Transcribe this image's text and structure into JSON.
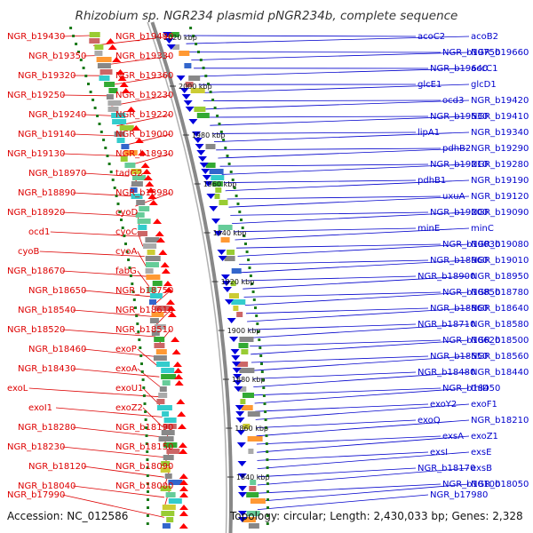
{
  "title": "Rhizobium sp. NGR234 plasmid pNGR234b, complete sequence",
  "footer": {
    "accession": "Accession: NC_012586",
    "summary": "Topology: circular; Length: 2,430,033 bp; Genes: 2,328"
  },
  "colors": {
    "left_labels": "#dd0000",
    "right_labels": "#0000cc",
    "backbone": "#888888",
    "ticks": "#1a7a1a"
  },
  "kbp_marks": [
    "2020 kbp",
    "2000 kbp",
    "1980 kbp",
    "1960 kbp",
    "1940 kbp",
    "1920 kbp",
    "1900 kbp",
    "1880 kbp",
    "1860 kbp",
    "1840 kbp"
  ],
  "left_labels": [
    "NGR_b19430",
    "NGR_b19490",
    "NGR_b19350",
    "NGR_b19330",
    "NGR_b19320",
    "NGR_b19360",
    "NGR_b19250",
    "NGR_b19230",
    "NGR_b19240",
    "NGR_b19220",
    "NGR_b19140",
    "NGR_b19000",
    "NGR_b19130",
    "NGR_b18930",
    "NGR_b18970",
    "tadG2",
    "NGR_b18890",
    "NGR_b18980",
    "NGR_b18920",
    "cyoD",
    "ocd1",
    "cyoC",
    "cyoB",
    "cyoA",
    "NGR_b18670",
    "fabG",
    "NGR_b18650",
    "NGR_b18750",
    "NGR_b18540",
    "NGR_b18610",
    "NGR_b18520",
    "NGR_b18510",
    "NGR_b18460",
    "exoP",
    "NGR_b18430",
    "exoA",
    "exoL",
    "exoU1",
    "exoI1",
    "exoZ2",
    "NGR_b18280",
    "NGR_b18190",
    "NGR_b18230",
    "NGR_b18150",
    "NGR_b18120",
    "NGR_b18090",
    "NGR_b18040",
    "NGR_b18000",
    "NGR_b17990"
  ],
  "right_labels": [
    "acoC2",
    "acoB2",
    "NGR_b19750",
    "NGR_b19660",
    "NGR_b19640",
    "accC1",
    "glcE1",
    "glcD1",
    "ocd3",
    "NGR_b19420",
    "NGR_b19530",
    "NGR_b19410",
    "lipA1",
    "NGR_b19340",
    "pdhB2",
    "NGR_b19290",
    "NGR_b19210",
    "NGR_b19280",
    "pdhB1",
    "NGR_b19190",
    "uxuA",
    "NGR_b19120",
    "NGR_b19200",
    "NGR_b19090",
    "minE",
    "minC",
    "NGR_b19030",
    "NGR_b19080",
    "NGR_b18960",
    "NGR_b19010",
    "NGR_b18900",
    "NGR_b18950",
    "NGR_b18850",
    "NGR_b18780",
    "NGR_b18860",
    "NGR_b18640",
    "NGR_b18710",
    "NGR_b18580",
    "NGR_b18620",
    "NGR_b18500",
    "NGR_b18550",
    "NGR_b18560",
    "NGR_b18480",
    "NGR_b18440",
    "NGR_b18450",
    "thiD",
    "exoY2",
    "exoF1",
    "exoQ",
    "NGR_b18210",
    "exsA",
    "exoZ1",
    "exsI",
    "exsE",
    "NGR_b18170",
    "exsB",
    "NGR_b18100",
    "NGR_b18050",
    "NGR_b17980"
  ]
}
